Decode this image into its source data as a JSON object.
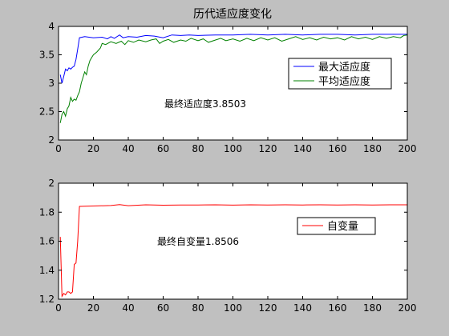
{
  "figure": {
    "title": "历代适应度变化",
    "background": "#c0c0c0",
    "axes_background": "#ffffff"
  },
  "chart_data": [
    {
      "type": "line",
      "title": "历代适应度变化",
      "xlabel": "",
      "ylabel": "",
      "xlim": [
        0,
        200
      ],
      "ylim": [
        2,
        4
      ],
      "xticks": [
        0,
        20,
        40,
        60,
        80,
        100,
        120,
        140,
        160,
        180,
        200
      ],
      "yticks": [
        2,
        2.5,
        3,
        3.5,
        4
      ],
      "grid": false,
      "legend_position": "right",
      "annotation": "最终适应度3.8503",
      "series": [
        {
          "name": "最大适应度",
          "color": "#0000ff",
          "points": [
            [
              1,
              3.15
            ],
            [
              2,
              3.0
            ],
            [
              3,
              3.12
            ],
            [
              4,
              3.25
            ],
            [
              5,
              3.22
            ],
            [
              6,
              3.27
            ],
            [
              7,
              3.25
            ],
            [
              8,
              3.28
            ],
            [
              9,
              3.3
            ],
            [
              10,
              3.42
            ],
            [
              11,
              3.6
            ],
            [
              12,
              3.8
            ],
            [
              15,
              3.82
            ],
            [
              20,
              3.8
            ],
            [
              25,
              3.81
            ],
            [
              28,
              3.78
            ],
            [
              30,
              3.82
            ],
            [
              32,
              3.79
            ],
            [
              35,
              3.85
            ],
            [
              37,
              3.8
            ],
            [
              40,
              3.82
            ],
            [
              45,
              3.81
            ],
            [
              50,
              3.84
            ],
            [
              55,
              3.83
            ],
            [
              60,
              3.8
            ],
            [
              65,
              3.85
            ],
            [
              70,
              3.84
            ],
            [
              75,
              3.85
            ],
            [
              80,
              3.84
            ],
            [
              90,
              3.85
            ],
            [
              100,
              3.85
            ],
            [
              110,
              3.86
            ],
            [
              120,
              3.85
            ],
            [
              130,
              3.86
            ],
            [
              140,
              3.85
            ],
            [
              150,
              3.86
            ],
            [
              160,
              3.86
            ],
            [
              170,
              3.85
            ],
            [
              180,
              3.86
            ],
            [
              190,
              3.86
            ],
            [
              200,
              3.86
            ]
          ]
        },
        {
          "name": "平均适应度",
          "color": "#008000",
          "points": [
            [
              1,
              2.3
            ],
            [
              2,
              2.45
            ],
            [
              3,
              2.5
            ],
            [
              4,
              2.42
            ],
            [
              5,
              2.55
            ],
            [
              6,
              2.6
            ],
            [
              7,
              2.75
            ],
            [
              8,
              2.68
            ],
            [
              9,
              2.72
            ],
            [
              10,
              2.7
            ],
            [
              11,
              2.78
            ],
            [
              12,
              2.85
            ],
            [
              13,
              3.0
            ],
            [
              14,
              3.1
            ],
            [
              15,
              3.2
            ],
            [
              16,
              3.15
            ],
            [
              17,
              3.3
            ],
            [
              18,
              3.4
            ],
            [
              19,
              3.45
            ],
            [
              20,
              3.5
            ],
            [
              22,
              3.55
            ],
            [
              24,
              3.62
            ],
            [
              25,
              3.7
            ],
            [
              27,
              3.68
            ],
            [
              30,
              3.73
            ],
            [
              33,
              3.7
            ],
            [
              36,
              3.74
            ],
            [
              38,
              3.68
            ],
            [
              40,
              3.75
            ],
            [
              43,
              3.72
            ],
            [
              46,
              3.76
            ],
            [
              50,
              3.73
            ],
            [
              53,
              3.76
            ],
            [
              56,
              3.78
            ],
            [
              58,
              3.7
            ],
            [
              60,
              3.74
            ],
            [
              63,
              3.77
            ],
            [
              66,
              3.72
            ],
            [
              70,
              3.76
            ],
            [
              73,
              3.74
            ],
            [
              76,
              3.79
            ],
            [
              80,
              3.75
            ],
            [
              83,
              3.78
            ],
            [
              86,
              3.72
            ],
            [
              90,
              3.76
            ],
            [
              93,
              3.79
            ],
            [
              96,
              3.75
            ],
            [
              100,
              3.78
            ],
            [
              104,
              3.74
            ],
            [
              108,
              3.79
            ],
            [
              112,
              3.75
            ],
            [
              116,
              3.8
            ],
            [
              120,
              3.76
            ],
            [
              124,
              3.8
            ],
            [
              128,
              3.74
            ],
            [
              132,
              3.78
            ],
            [
              136,
              3.82
            ],
            [
              140,
              3.77
            ],
            [
              144,
              3.8
            ],
            [
              148,
              3.76
            ],
            [
              152,
              3.81
            ],
            [
              156,
              3.78
            ],
            [
              160,
              3.8
            ],
            [
              164,
              3.76
            ],
            [
              168,
              3.82
            ],
            [
              172,
              3.78
            ],
            [
              176,
              3.81
            ],
            [
              180,
              3.77
            ],
            [
              184,
              3.82
            ],
            [
              188,
              3.79
            ],
            [
              192,
              3.82
            ],
            [
              196,
              3.8
            ],
            [
              198,
              3.84
            ],
            [
              200,
              3.85
            ]
          ]
        }
      ]
    },
    {
      "type": "line",
      "title": "",
      "xlabel": "",
      "ylabel": "",
      "xlim": [
        0,
        200
      ],
      "ylim": [
        1.2,
        2
      ],
      "xticks": [
        0,
        20,
        40,
        60,
        80,
        100,
        120,
        140,
        160,
        180,
        200
      ],
      "yticks": [
        1.2,
        1.4,
        1.6,
        1.8,
        2
      ],
      "grid": false,
      "legend_position": "right",
      "annotation": "最终自变量1.8506",
      "series": [
        {
          "name": "自变量",
          "color": "#ff0000",
          "points": [
            [
              1,
              1.63
            ],
            [
              2,
              1.22
            ],
            [
              3,
              1.24
            ],
            [
              4,
              1.23
            ],
            [
              5,
              1.25
            ],
            [
              6,
              1.25
            ],
            [
              7,
              1.24
            ],
            [
              8,
              1.25
            ],
            [
              9,
              1.44
            ],
            [
              10,
              1.45
            ],
            [
              11,
              1.6
            ],
            [
              12,
              1.84
            ],
            [
              20,
              1.843
            ],
            [
              30,
              1.846
            ],
            [
              35,
              1.852
            ],
            [
              40,
              1.845
            ],
            [
              50,
              1.851
            ],
            [
              60,
              1.848
            ],
            [
              70,
              1.85
            ],
            [
              80,
              1.85
            ],
            [
              90,
              1.851
            ],
            [
              100,
              1.849
            ],
            [
              110,
              1.851
            ],
            [
              120,
              1.85
            ],
            [
              130,
              1.851
            ],
            [
              140,
              1.85
            ],
            [
              150,
              1.851
            ],
            [
              160,
              1.85
            ],
            [
              170,
              1.851
            ],
            [
              180,
              1.85
            ],
            [
              190,
              1.851
            ],
            [
              200,
              1.851
            ]
          ]
        }
      ]
    }
  ]
}
